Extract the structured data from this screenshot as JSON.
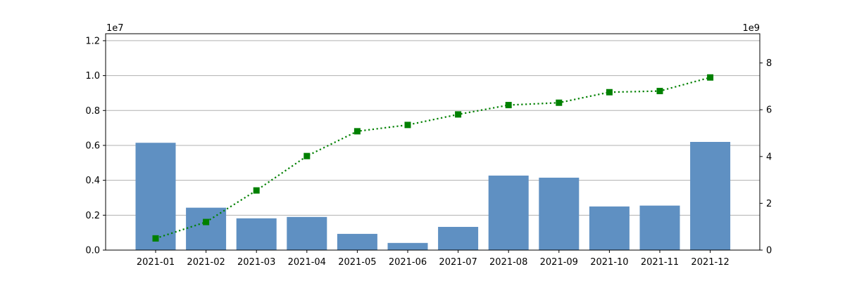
{
  "chart_data": {
    "type": "bar",
    "categories": [
      "2021-01",
      "2021-02",
      "2021-03",
      "2021-04",
      "2021-05",
      "2021-06",
      "2021-07",
      "2021-08",
      "2021-09",
      "2021-10",
      "2021-11",
      "2021-12"
    ],
    "series": [
      {
        "type": "bar",
        "axis": "left",
        "color": "#5f90c2",
        "values": [
          6150000,
          2430000,
          1820000,
          1900000,
          930000,
          410000,
          1330000,
          4270000,
          4150000,
          2500000,
          2550000,
          6200000
        ]
      },
      {
        "type": "line",
        "axis": "right",
        "color": "#008000",
        "line_style": "dotted",
        "marker": "square",
        "values": [
          500000000,
          1200000000,
          2550000000,
          4020000000,
          5080000000,
          5350000000,
          5800000000,
          6200000000,
          6300000000,
          6750000000,
          6800000000,
          7380000000
        ]
      }
    ],
    "left_axis": {
      "multiplier_label": "1e7",
      "ylim": [
        0,
        12400000
      ],
      "tick_values": [
        0,
        2000000,
        4000000,
        6000000,
        8000000,
        10000000,
        12000000
      ],
      "tick_labels": [
        "0.0",
        "0.2",
        "0.4",
        "0.6",
        "0.8",
        "1.0",
        "1.2"
      ]
    },
    "right_axis": {
      "multiplier_label": "1e9",
      "ylim": [
        0,
        9250000000
      ],
      "tick_values": [
        0,
        2000000000,
        4000000000,
        6000000000,
        8000000000
      ],
      "tick_labels": [
        "0",
        "2",
        "4",
        "6",
        "8"
      ]
    },
    "grid": "horizontal",
    "title": "",
    "xlabel": "",
    "ylabel": ""
  }
}
